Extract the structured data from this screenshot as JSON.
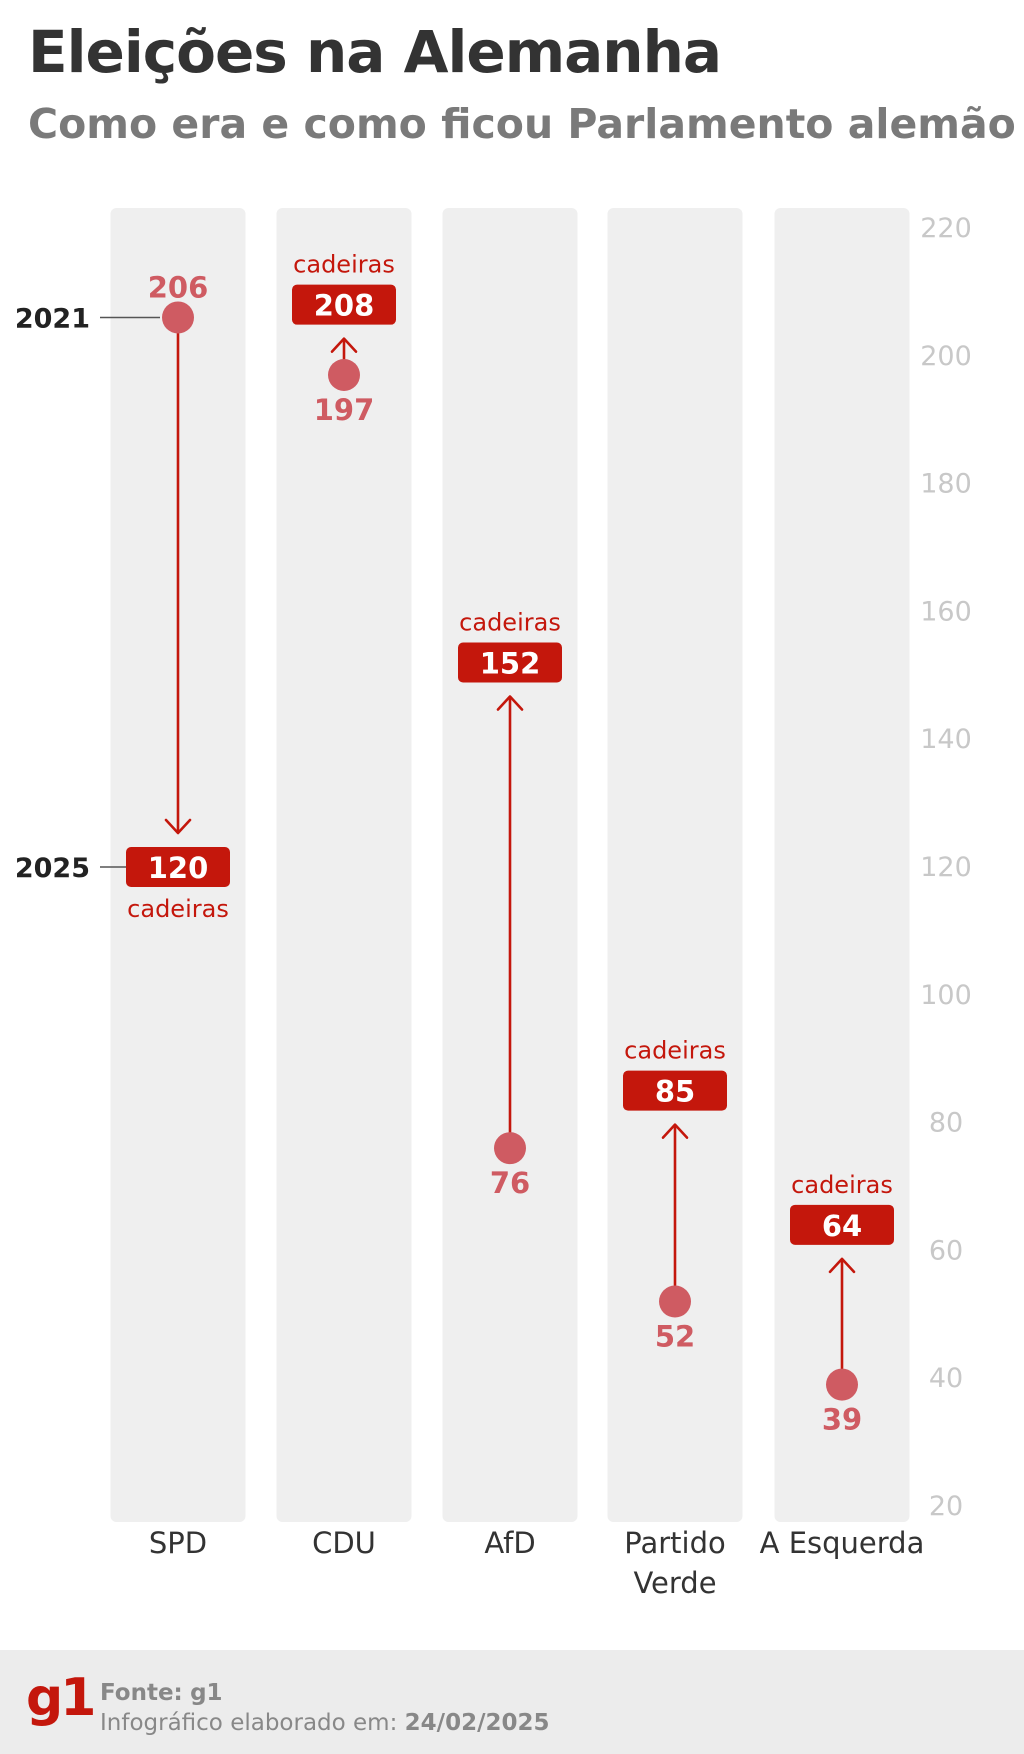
{
  "header": {
    "title": "Eleições na Alemanha",
    "subtitle": "Como era e como ficou Parlamento alemão"
  },
  "footer": {
    "logo": "g1",
    "source_label": "Fonte:",
    "source_value": "g1",
    "made_label": "Infográfico elaborado em:",
    "made_date": "24/02/2025"
  },
  "colors": {
    "red": "#c4170c",
    "light_red": "#cf5b62",
    "column_bg": "#efefef",
    "tick_text": "#c8c8c8"
  },
  "chart_data": {
    "type": "dumbbell",
    "title": "Eleições na Alemanha",
    "subtitle": "Como era e como ficou Parlamento alemão",
    "categories": [
      "SPD",
      "CDU",
      "AfD",
      "Partido Verde",
      "A Esquerda"
    ],
    "series": [
      {
        "name": "2021",
        "values": [
          206,
          197,
          76,
          52,
          39
        ]
      },
      {
        "name": "2025",
        "values": [
          120,
          208,
          152,
          85,
          64
        ]
      }
    ],
    "unit_label": "cadeiras",
    "yaxis": {
      "ticks": [
        220,
        200,
        180,
        160,
        140,
        120,
        100,
        80,
        60,
        40,
        20
      ],
      "position": "right",
      "range": [
        20,
        220
      ]
    },
    "legend_labels": [
      "2021",
      "2025"
    ],
    "grid": false
  }
}
